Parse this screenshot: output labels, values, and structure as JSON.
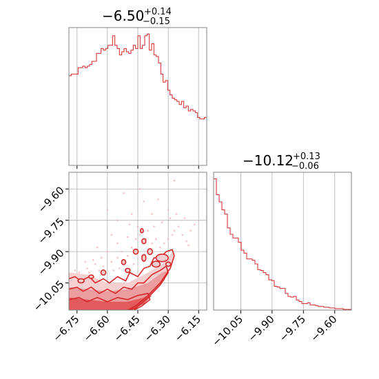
{
  "chart_data": [
    {
      "type": "histogram",
      "panel": "marginal-param-1",
      "title": {
        "median": "−6.50",
        "upper": "+0.14",
        "lower": "−0.15"
      },
      "xlim": [
        -6.79,
        -6.11
      ],
      "grid": true,
      "color": "#d62728",
      "bins": {
        "edges_start": -6.79,
        "edge_step": 0.0136,
        "counts": [
          56,
          57,
          57,
          57,
          61,
          61,
          62,
          61,
          62,
          63,
          65,
          65,
          70,
          70,
          73,
          72,
          73,
          75,
          75,
          81,
          75,
          73,
          69,
          71,
          73,
          71,
          70,
          72,
          75,
          73,
          81,
          73,
          75,
          81,
          82,
          72,
          76,
          69,
          68,
          64,
          57,
          52,
          53,
          47,
          44,
          42,
          41,
          40,
          38,
          40,
          36,
          37,
          34,
          35,
          34,
          33,
          30,
          29,
          29,
          30
        ]
      }
    },
    {
      "type": "histogram",
      "panel": "marginal-param-2",
      "title": {
        "median": "−10.12",
        "upper": "+0.13",
        "lower": "−0.06"
      },
      "xlim": [
        -10.18,
        -9.52
      ],
      "xticks": [
        "−10.05",
        "−9.90",
        "−9.75",
        "−9.60"
      ],
      "xtick_values": [
        -10.05,
        -9.9,
        -9.75,
        -9.6
      ],
      "grid": true,
      "color": "#d62728",
      "bins": {
        "edges_start": -10.18,
        "edge_step": 0.0132,
        "counts": [
          182,
          160,
          150,
          139,
          133,
          114,
          105,
          100,
          100,
          94,
          83,
          79,
          71,
          71,
          69,
          64,
          56,
          55,
          52,
          49,
          42,
          41,
          33,
          32,
          30,
          30,
          23,
          19,
          18,
          19,
          14,
          12,
          9,
          9,
          10,
          7,
          7,
          6,
          5,
          5,
          4,
          4,
          3,
          3,
          2,
          2,
          2,
          1,
          1,
          1
        ]
      }
    },
    {
      "type": "contour",
      "panel": "joint-param-1-vs-param-2",
      "xlim": [
        -6.79,
        -6.11
      ],
      "ylim": [
        -10.18,
        -9.52
      ],
      "xticks": [
        "−6.75",
        "−6.60",
        "−6.45",
        "−6.30",
        "−6.15"
      ],
      "xtick_values": [
        -6.75,
        -6.6,
        -6.45,
        -6.3,
        -6.15
      ],
      "yticks": [
        "−9.60",
        "−9.75",
        "−9.90",
        "−10.05"
      ],
      "ytick_values": [
        -9.6,
        -9.75,
        -9.9,
        -10.05
      ],
      "grid": true,
      "color": "#d62728",
      "density_edge": [
        [
          -6.79,
          -10.0
        ],
        [
          -6.7,
          -10.01
        ],
        [
          -6.6,
          -10.05
        ],
        [
          -6.5,
          -10.05
        ],
        [
          -6.4,
          -10.0
        ],
        [
          -6.33,
          -9.96
        ],
        [
          -6.3,
          -9.93
        ],
        [
          -6.28,
          -9.9
        ],
        [
          -6.27,
          -9.93
        ],
        [
          -6.3,
          -9.99
        ],
        [
          -6.34,
          -10.05
        ],
        [
          -6.4,
          -10.11
        ],
        [
          -6.45,
          -10.15
        ],
        [
          -6.5,
          -10.18
        ]
      ],
      "inner_edge": [
        [
          -6.79,
          -10.07
        ],
        [
          -6.7,
          -10.08
        ],
        [
          -6.6,
          -10.09
        ],
        [
          -6.5,
          -10.08
        ],
        [
          -6.4,
          -10.05
        ],
        [
          -6.33,
          -10.0
        ],
        [
          -6.3,
          -9.99
        ],
        [
          -6.32,
          -10.04
        ],
        [
          -6.38,
          -10.1
        ],
        [
          -6.45,
          -10.16
        ],
        [
          -6.5,
          -10.18
        ]
      ],
      "core_edge": [
        [
          -6.79,
          -10.12
        ],
        [
          -6.7,
          -10.13
        ],
        [
          -6.6,
          -10.14
        ],
        [
          -6.5,
          -10.14
        ],
        [
          -6.42,
          -10.12
        ],
        [
          -6.38,
          -10.11
        ],
        [
          -6.42,
          -10.15
        ],
        [
          -6.48,
          -10.18
        ]
      ],
      "outer_contour": [
        [
          -6.79,
          -10.03
        ],
        [
          -6.76,
          -10.02
        ],
        [
          -6.73,
          -10.04
        ],
        [
          -6.69,
          -10.02
        ],
        [
          -6.66,
          -10.05
        ],
        [
          -6.62,
          -10.03
        ],
        [
          -6.59,
          -10.05
        ],
        [
          -6.55,
          -10.02
        ],
        [
          -6.51,
          -10.04
        ],
        [
          -6.49,
          -10.0
        ],
        [
          -6.45,
          -10.02
        ],
        [
          -6.42,
          -9.98
        ],
        [
          -6.39,
          -9.97
        ],
        [
          -6.37,
          -9.93
        ],
        [
          -6.34,
          -9.93
        ],
        [
          -6.31,
          -9.9
        ],
        [
          -6.28,
          -9.89
        ],
        [
          -6.27,
          -9.92
        ],
        [
          -6.29,
          -9.98
        ],
        [
          -6.34,
          -10.05
        ],
        [
          -6.4,
          -10.11
        ],
        [
          -6.46,
          -10.16
        ],
        [
          -6.5,
          -10.18
        ]
      ],
      "mid_contour": [
        [
          -6.79,
          -10.08
        ],
        [
          -6.75,
          -10.07
        ],
        [
          -6.72,
          -10.09
        ],
        [
          -6.68,
          -10.07
        ],
        [
          -6.64,
          -10.1
        ],
        [
          -6.6,
          -10.08
        ],
        [
          -6.56,
          -10.1
        ],
        [
          -6.52,
          -10.07
        ],
        [
          -6.48,
          -10.08
        ],
        [
          -6.45,
          -10.05
        ],
        [
          -6.42,
          -10.05
        ],
        [
          -6.38,
          -10.01
        ],
        [
          -6.34,
          -9.99
        ],
        [
          -6.31,
          -9.97
        ],
        [
          -6.3,
          -10.0
        ],
        [
          -6.34,
          -10.06
        ],
        [
          -6.4,
          -10.12
        ],
        [
          -6.46,
          -10.17
        ],
        [
          -6.49,
          -10.18
        ]
      ],
      "inner_contour": [
        [
          -6.79,
          -10.13
        ],
        [
          -6.74,
          -10.12
        ],
        [
          -6.7,
          -10.14
        ],
        [
          -6.65,
          -10.12
        ],
        [
          -6.6,
          -10.14
        ],
        [
          -6.55,
          -10.12
        ],
        [
          -6.5,
          -10.13
        ],
        [
          -6.45,
          -10.11
        ],
        [
          -6.4,
          -10.1
        ],
        [
          -6.39,
          -10.13
        ],
        [
          -6.43,
          -10.16
        ],
        [
          -6.47,
          -10.18
        ]
      ],
      "islands": [
        {
          "cx": -6.33,
          "cy": -9.93,
          "rx": 0.03,
          "ry": 0.018
        },
        {
          "cx": -6.36,
          "cy": -9.96,
          "rx": 0.02,
          "ry": 0.014
        },
        {
          "cx": -6.39,
          "cy": -9.9,
          "rx": 0.012,
          "ry": 0.014
        },
        {
          "cx": -6.42,
          "cy": -9.93,
          "rx": 0.01,
          "ry": 0.016
        },
        {
          "cx": -6.46,
          "cy": -9.9,
          "rx": 0.012,
          "ry": 0.012
        },
        {
          "cx": -6.42,
          "cy": -9.85,
          "rx": 0.01,
          "ry": 0.012
        },
        {
          "cx": -6.52,
          "cy": -9.95,
          "rx": 0.01,
          "ry": 0.012
        },
        {
          "cx": -6.5,
          "cy": -9.99,
          "rx": 0.012,
          "ry": 0.01
        },
        {
          "cx": -6.43,
          "cy": -9.8,
          "rx": 0.007,
          "ry": 0.01
        },
        {
          "cx": -6.62,
          "cy": -10.0,
          "rx": 0.012,
          "ry": 0.012
        },
        {
          "cx": -6.73,
          "cy": -10.04,
          "rx": 0.015,
          "ry": 0.01
        },
        {
          "cx": -6.68,
          "cy": -10.02,
          "rx": 0.012,
          "ry": 0.008
        },
        {
          "cx": -6.3,
          "cy": -9.96,
          "rx": 0.012,
          "ry": 0.01
        }
      ],
      "scatter": [
        [
          -6.74,
          -10.0
        ],
        [
          -6.7,
          -9.98
        ],
        [
          -6.66,
          -9.96
        ],
        [
          -6.62,
          -9.97
        ],
        [
          -6.58,
          -9.95
        ],
        [
          -6.55,
          -9.93
        ],
        [
          -6.53,
          -9.9
        ],
        [
          -6.5,
          -9.92
        ],
        [
          -6.48,
          -9.88
        ],
        [
          -6.46,
          -9.84
        ],
        [
          -6.44,
          -9.82
        ],
        [
          -6.41,
          -9.84
        ],
        [
          -6.4,
          -9.8
        ],
        [
          -6.38,
          -9.86
        ],
        [
          -6.36,
          -9.84
        ],
        [
          -6.34,
          -9.88
        ],
        [
          -6.32,
          -9.86
        ],
        [
          -6.3,
          -9.84
        ],
        [
          -6.28,
          -9.82
        ],
        [
          -6.27,
          -9.8
        ],
        [
          -6.25,
          -9.78
        ],
        [
          -6.23,
          -9.82
        ],
        [
          -6.21,
          -9.85
        ],
        [
          -6.2,
          -9.87
        ],
        [
          -6.19,
          -9.8
        ],
        [
          -6.45,
          -9.78
        ],
        [
          -6.5,
          -9.83
        ],
        [
          -6.55,
          -9.86
        ],
        [
          -6.6,
          -9.9
        ],
        [
          -6.63,
          -9.93
        ],
        [
          -6.67,
          -9.94
        ],
        [
          -6.71,
          -9.95
        ],
        [
          -6.33,
          -9.76
        ],
        [
          -6.29,
          -9.74
        ],
        [
          -6.6,
          -9.7
        ],
        [
          -6.55,
          -9.75
        ],
        [
          -6.48,
          -9.72
        ],
        [
          -6.42,
          -9.66
        ],
        [
          -6.35,
          -9.65
        ],
        [
          -6.52,
          -9.62
        ],
        [
          -6.44,
          -9.6
        ],
        [
          -6.22,
          -9.74
        ],
        [
          -6.17,
          -9.77
        ],
        [
          -6.27,
          -9.56
        ],
        [
          -6.3,
          -9.7
        ],
        [
          -6.38,
          -9.72
        ],
        [
          -6.65,
          -9.88
        ],
        [
          -6.58,
          -9.82
        ],
        [
          -6.49,
          -9.77
        ],
        [
          -6.37,
          -9.78
        ],
        [
          -6.26,
          -9.72
        ],
        [
          -6.57,
          -9.99
        ],
        [
          -6.47,
          -9.96
        ],
        [
          -6.43,
          -9.92
        ],
        [
          -6.39,
          -9.89
        ],
        [
          -6.31,
          -9.92
        ],
        [
          -6.69,
          -10.0
        ],
        [
          -6.64,
          -9.99
        ],
        [
          -6.76,
          -9.99
        ],
        [
          -6.54,
          -9.98
        ]
      ]
    }
  ]
}
